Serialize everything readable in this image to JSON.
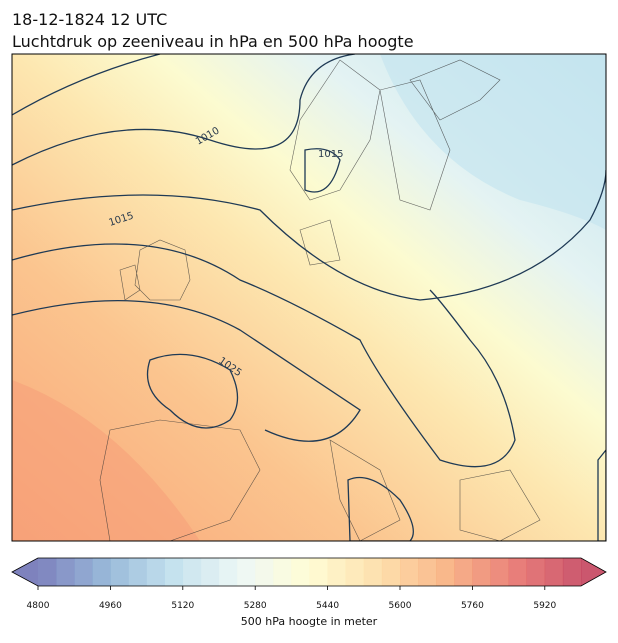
{
  "map": {
    "title_lines": [
      "18-12-1824 12 UTC",
      "Luchtdruk op zeeniveau in hPa en 500 hPa hoogte"
    ],
    "contour_labels": [
      "1010",
      "1015",
      "1015",
      "1025"
    ],
    "colorbar": {
      "label": "500 hPa hoogte in meter",
      "range": [
        4800,
        6000
      ],
      "step": 40,
      "ticks": [
        4800,
        4960,
        5120,
        5280,
        5440,
        5600,
        5760,
        5920
      ],
      "colormap": [
        "#5e63ad",
        "#7fa6cf",
        "#b7dbea",
        "#eaf6f3",
        "#fffccb",
        "#fdd99a",
        "#f8a66e",
        "#e5625a",
        "#be2d4a"
      ],
      "alpha": 0.8
    }
  }
}
